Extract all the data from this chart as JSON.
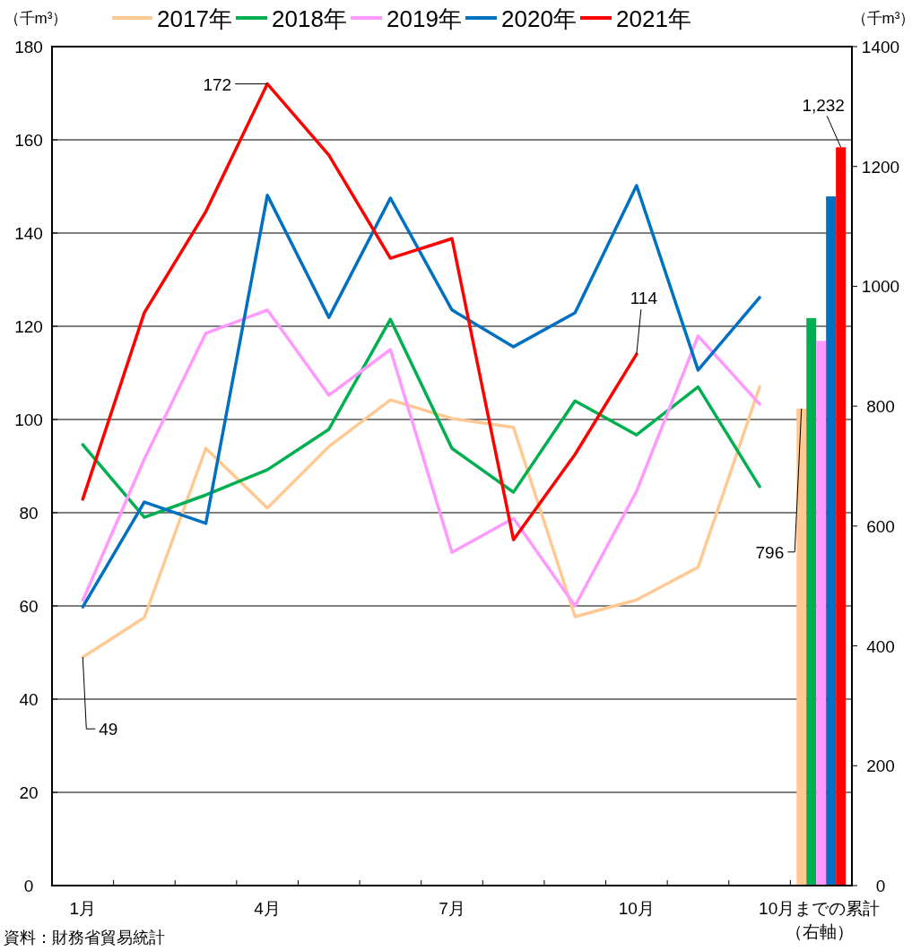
{
  "chart_data": {
    "type": "line",
    "ylabel": "（千m³）",
    "y2label": "（千m³）",
    "categories": [
      "1月",
      null,
      null,
      "4月",
      null,
      null,
      "7月",
      null,
      null,
      "10月",
      null,
      null,
      "10月までの累計（右軸）"
    ],
    "ylim": [
      0,
      180
    ],
    "yticks": [
      0,
      20,
      40,
      60,
      80,
      100,
      120,
      140,
      160,
      180
    ],
    "y2lim": [
      0,
      1400
    ],
    "y2ticks": [
      0,
      200,
      400,
      600,
      800,
      1000,
      1200,
      1400
    ],
    "grid": "y",
    "legend": "top",
    "marker": "none",
    "line_style": "solid",
    "series": [
      {
        "name": "2017年",
        "color": "#ffc993",
        "values": [
          49,
          57.5,
          93.8,
          81,
          94.2,
          104.2,
          100.2,
          98.3,
          57.7,
          61.3,
          68.3,
          107,
          null
        ],
        "value_labels": [
          "49",
          null,
          null,
          null,
          null,
          null,
          null,
          null,
          null,
          null,
          null,
          null,
          null
        ]
      },
      {
        "name": "2018年",
        "color": "#00b050",
        "values": [
          94.6,
          79,
          83.8,
          89.2,
          97.9,
          121.5,
          93.8,
          84.4,
          104,
          96.7,
          107,
          85.6,
          null
        ]
      },
      {
        "name": "2019年",
        "color": "#ff99ff",
        "values": [
          61.2,
          91.5,
          118.5,
          123.5,
          105.2,
          115,
          71.5,
          78.8,
          60,
          84.6,
          117.9,
          103.3,
          null
        ]
      },
      {
        "name": "2020年",
        "color": "#0070c0",
        "values": [
          59.8,
          82.3,
          77.7,
          148.1,
          121.9,
          147.5,
          123.5,
          115.6,
          122.9,
          150.2,
          110.6,
          126.2,
          null
        ]
      },
      {
        "name": "2021年",
        "color": "#ff0000",
        "values": [
          82.9,
          122.9,
          144.6,
          172,
          156.7,
          134.6,
          138.8,
          74.2,
          92.5,
          114,
          null,
          null,
          null
        ],
        "value_labels": [
          null,
          null,
          null,
          "172",
          null,
          null,
          null,
          null,
          null,
          "114",
          null,
          null,
          null
        ]
      },
      {
        "type": "bar",
        "axis": "y2",
        "color": "#ffc993",
        "values": [
          null,
          null,
          null,
          null,
          null,
          null,
          null,
          null,
          null,
          null,
          null,
          null,
          796
        ],
        "value_labels": [
          null,
          null,
          null,
          null,
          null,
          null,
          null,
          null,
          null,
          null,
          null,
          null,
          "796"
        ]
      },
      {
        "type": "bar",
        "axis": "y2",
        "color": "#00b050",
        "values": [
          null,
          null,
          null,
          null,
          null,
          null,
          null,
          null,
          null,
          null,
          null,
          null,
          947
        ]
      },
      {
        "type": "bar",
        "axis": "y2",
        "color": "#ff99ff",
        "values": [
          null,
          null,
          null,
          null,
          null,
          null,
          null,
          null,
          null,
          null,
          null,
          null,
          909
        ]
      },
      {
        "type": "bar",
        "axis": "y2",
        "color": "#0070c0",
        "values": [
          null,
          null,
          null,
          null,
          null,
          null,
          null,
          null,
          null,
          null,
          null,
          null,
          1150
        ]
      },
      {
        "type": "bar",
        "axis": "y2",
        "color": "#ff0000",
        "values": [
          null,
          null,
          null,
          null,
          null,
          null,
          null,
          null,
          null,
          null,
          null,
          null,
          1232
        ],
        "value_labels": [
          null,
          null,
          null,
          null,
          null,
          null,
          null,
          null,
          null,
          null,
          null,
          null,
          "1,232"
        ]
      }
    ],
    "annotations": [
      "資料：財務省貿易統計"
    ]
  }
}
